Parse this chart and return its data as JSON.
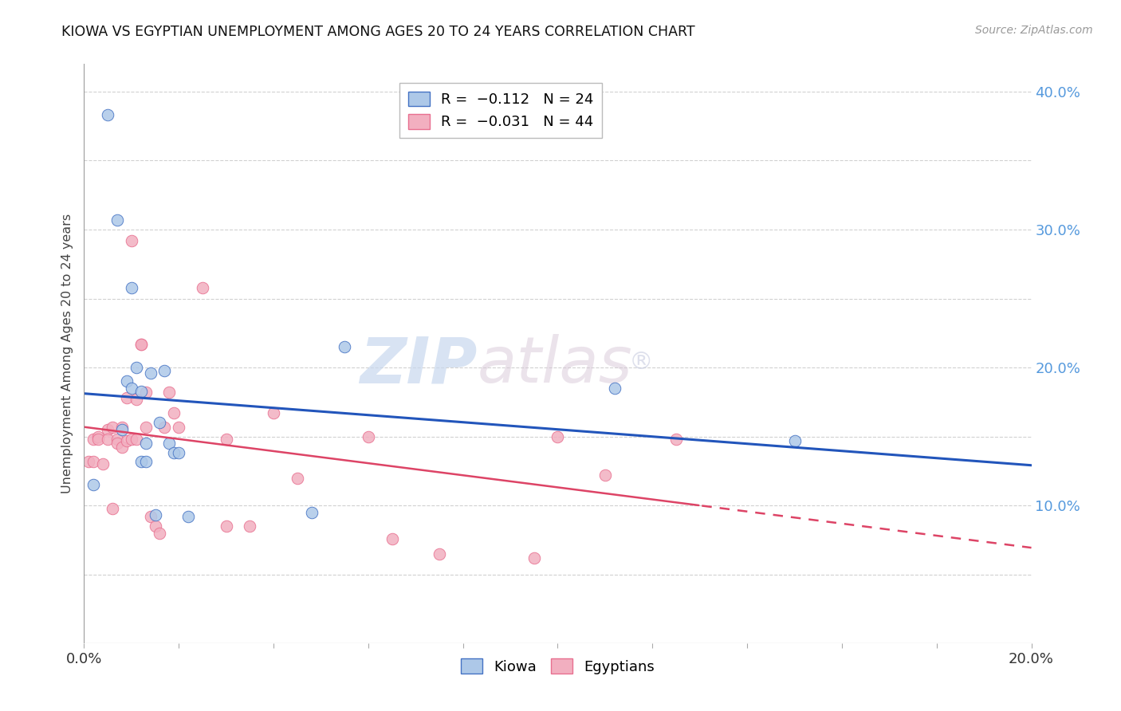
{
  "title": "KIOWA VS EGYPTIAN UNEMPLOYMENT AMONG AGES 20 TO 24 YEARS CORRELATION CHART",
  "source": "Source: ZipAtlas.com",
  "ylabel": "Unemployment Among Ages 20 to 24 years",
  "watermark_zip": "ZIP",
  "watermark_atlas": "atlas",
  "x_min": 0.0,
  "x_max": 0.2,
  "y_min": 0.0,
  "y_max": 0.42,
  "x_ticks": [
    0.0,
    0.02,
    0.04,
    0.06,
    0.08,
    0.1,
    0.12,
    0.14,
    0.16,
    0.18,
    0.2
  ],
  "y_ticks": [
    0.0,
    0.05,
    0.1,
    0.15,
    0.2,
    0.25,
    0.3,
    0.35,
    0.4
  ],
  "y_tick_labels_right": [
    "",
    "",
    "10.0%",
    "",
    "20.0%",
    "",
    "30.0%",
    "",
    "40.0%"
  ],
  "kiowa_color": "#adc8e8",
  "egyptian_color": "#f2afc0",
  "kiowa_edge_color": "#4472c4",
  "egyptian_edge_color": "#e87090",
  "kiowa_line_color": "#2255bb",
  "egyptian_line_color": "#dd4466",
  "kiowa_points_x": [
    0.002,
    0.005,
    0.007,
    0.008,
    0.009,
    0.01,
    0.01,
    0.011,
    0.012,
    0.012,
    0.013,
    0.013,
    0.014,
    0.015,
    0.016,
    0.017,
    0.018,
    0.019,
    0.02,
    0.022,
    0.048,
    0.055,
    0.112,
    0.15
  ],
  "kiowa_points_y": [
    0.115,
    0.383,
    0.307,
    0.155,
    0.19,
    0.258,
    0.185,
    0.2,
    0.132,
    0.183,
    0.145,
    0.132,
    0.196,
    0.093,
    0.16,
    0.198,
    0.145,
    0.138,
    0.138,
    0.092,
    0.095,
    0.215,
    0.185,
    0.147
  ],
  "egyptian_points_x": [
    0.001,
    0.002,
    0.002,
    0.003,
    0.003,
    0.004,
    0.005,
    0.005,
    0.006,
    0.006,
    0.007,
    0.007,
    0.008,
    0.008,
    0.009,
    0.009,
    0.01,
    0.01,
    0.011,
    0.011,
    0.012,
    0.012,
    0.013,
    0.013,
    0.014,
    0.015,
    0.016,
    0.017,
    0.018,
    0.019,
    0.02,
    0.025,
    0.03,
    0.03,
    0.035,
    0.04,
    0.045,
    0.06,
    0.065,
    0.075,
    0.095,
    0.1,
    0.11,
    0.125
  ],
  "egyptian_points_y": [
    0.132,
    0.148,
    0.132,
    0.15,
    0.148,
    0.13,
    0.155,
    0.148,
    0.157,
    0.098,
    0.148,
    0.145,
    0.142,
    0.157,
    0.178,
    0.147,
    0.292,
    0.148,
    0.177,
    0.148,
    0.217,
    0.217,
    0.182,
    0.157,
    0.092,
    0.085,
    0.08,
    0.157,
    0.182,
    0.167,
    0.157,
    0.258,
    0.148,
    0.085,
    0.085,
    0.167,
    0.12,
    0.15,
    0.076,
    0.065,
    0.062,
    0.15,
    0.122,
    0.148
  ],
  "background_color": "#ffffff",
  "grid_color": "#cccccc"
}
